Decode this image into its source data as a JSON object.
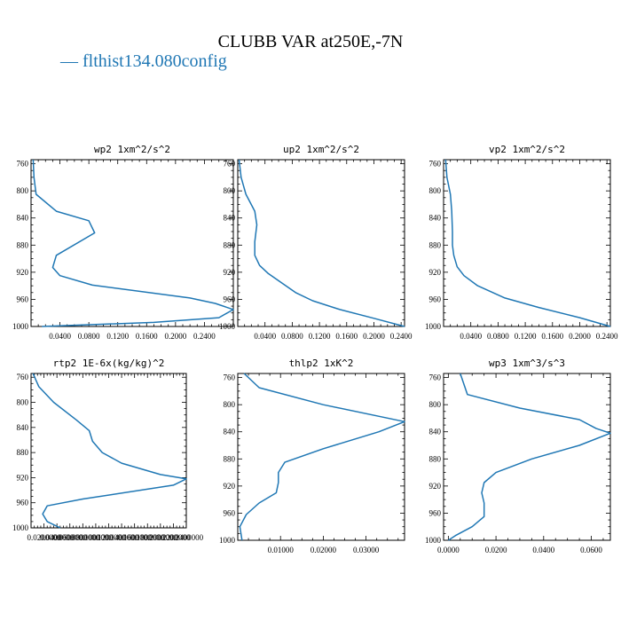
{
  "title": "CLUBB VAR at250E,-7N",
  "legend": {
    "label": "flthist134.080config",
    "symbol": "—",
    "color": "#1f77b4"
  },
  "chart_data": [
    {
      "type": "line",
      "title": "wp2  1xm^2/s^2",
      "y_ticks": [
        760,
        800,
        840,
        880,
        920,
        960,
        1000
      ],
      "ylim": [
        1000,
        754
      ],
      "xlim": [
        0,
        0.28
      ],
      "x_ticks": [
        0.04,
        0.08,
        0.12,
        0.16,
        0.2,
        0.24
      ],
      "x_tick_labels": [
        "0.0400",
        "0.0800",
        "0.1200",
        "0.1600",
        "0.2000",
        "0.2400"
      ],
      "series": [
        {
          "name": "flthist134.080config",
          "points": [
            [
              0.003,
              754
            ],
            [
              0.004,
              780
            ],
            [
              0.007,
              805
            ],
            [
              0.035,
              830
            ],
            [
              0.08,
              844
            ],
            [
              0.088,
              862
            ],
            [
              0.035,
              895
            ],
            [
              0.03,
              913
            ],
            [
              0.04,
              925
            ],
            [
              0.085,
              939
            ],
            [
              0.22,
              958
            ],
            [
              0.255,
              966
            ],
            [
              0.28,
              975
            ],
            [
              0.26,
              987
            ],
            [
              0.17,
              994
            ],
            [
              0.015,
              1000
            ]
          ]
        }
      ]
    },
    {
      "type": "line",
      "title": "up2  1xm^2/s^2",
      "y_ticks": [
        760,
        800,
        840,
        880,
        920,
        960,
        1000
      ],
      "ylim": [
        1000,
        754
      ],
      "xlim": [
        0,
        0.245
      ],
      "x_ticks": [
        0.04,
        0.08,
        0.12,
        0.16,
        0.2,
        0.24
      ],
      "x_tick_labels": [
        "0.0400",
        "0.0800",
        "0.1200",
        "0.1600",
        "0.2000",
        "0.2400"
      ],
      "series": [
        {
          "name": "flthist134.080config",
          "points": [
            [
              0.002,
              754
            ],
            [
              0.005,
              780
            ],
            [
              0.012,
              805
            ],
            [
              0.025,
              830
            ],
            [
              0.028,
              850
            ],
            [
              0.025,
              875
            ],
            [
              0.025,
              895
            ],
            [
              0.032,
              910
            ],
            [
              0.045,
              922
            ],
            [
              0.065,
              936
            ],
            [
              0.085,
              950
            ],
            [
              0.11,
              962
            ],
            [
              0.15,
              975
            ],
            [
              0.2,
              988
            ],
            [
              0.245,
              1000
            ]
          ]
        }
      ]
    },
    {
      "type": "line",
      "title": "vp2  1xm^2/s^2",
      "y_ticks": [
        760,
        800,
        840,
        880,
        920,
        960,
        1000
      ],
      "ylim": [
        1000,
        754
      ],
      "xlim": [
        0,
        0.245
      ],
      "x_ticks": [
        0.04,
        0.08,
        0.12,
        0.16,
        0.2,
        0.24
      ],
      "x_tick_labels": [
        "0.0400",
        "0.0800",
        "0.1200",
        "0.1600",
        "0.2000",
        "0.2400"
      ],
      "series": [
        {
          "name": "flthist134.080config",
          "points": [
            [
              0.003,
              754
            ],
            [
              0.005,
              780
            ],
            [
              0.01,
              805
            ],
            [
              0.012,
              830
            ],
            [
              0.013,
              860
            ],
            [
              0.013,
              880
            ],
            [
              0.015,
              895
            ],
            [
              0.02,
              912
            ],
            [
              0.03,
              925
            ],
            [
              0.05,
              940
            ],
            [
              0.09,
              958
            ],
            [
              0.14,
              972
            ],
            [
              0.2,
              987
            ],
            [
              0.245,
              1000
            ]
          ]
        }
      ]
    },
    {
      "type": "line",
      "title": "rtp2  1E-6x(kg/kg)^2",
      "y_ticks": [
        760,
        800,
        840,
        880,
        920,
        960,
        1000
      ],
      "ylim": [
        1000,
        754
      ],
      "xlim": [
        0,
        0.24
      ],
      "x_ticks": [
        0.02,
        0.04,
        0.06,
        0.08,
        0.1,
        0.12,
        0.14,
        0.16,
        0.18,
        0.2,
        0.22,
        0.24
      ],
      "x_tick_labels": [
        "0.0200000",
        "0.0400000",
        "0.0600000",
        "0.0800000",
        "0.1000000",
        "0.1200000",
        "0.1400000",
        "0.1600000",
        "0.1800000",
        "0.2000000",
        "0.2200000",
        "0.2400000"
      ],
      "series": [
        {
          "name": "flthist134.080config",
          "points": [
            [
              0.003,
              754
            ],
            [
              0.012,
              775
            ],
            [
              0.035,
              800
            ],
            [
              0.07,
              828
            ],
            [
              0.09,
              845
            ],
            [
              0.095,
              862
            ],
            [
              0.11,
              880
            ],
            [
              0.14,
              897
            ],
            [
              0.2,
              915
            ],
            [
              0.24,
              922
            ],
            [
              0.22,
              932
            ],
            [
              0.08,
              954
            ],
            [
              0.025,
              965
            ],
            [
              0.018,
              978
            ],
            [
              0.025,
              990
            ],
            [
              0.045,
              1000
            ]
          ]
        }
      ]
    },
    {
      "type": "line",
      "title": "thlp2  1xK^2",
      "y_ticks": [
        760,
        800,
        840,
        880,
        920,
        960,
        1000
      ],
      "ylim": [
        1000,
        754
      ],
      "xlim": [
        0,
        0.039
      ],
      "x_ticks": [
        0.01,
        0.02,
        0.03
      ],
      "x_tick_labels": [
        "0.01000",
        "0.02000",
        "0.03000"
      ],
      "series": [
        {
          "name": "flthist134.080config",
          "points": [
            [
              0.0015,
              754
            ],
            [
              0.005,
              775
            ],
            [
              0.02,
              800
            ],
            [
              0.039,
              825
            ],
            [
              0.033,
              840
            ],
            [
              0.02,
              865
            ],
            [
              0.011,
              885
            ],
            [
              0.0095,
              900
            ],
            [
              0.0095,
              915
            ],
            [
              0.009,
              930
            ],
            [
              0.005,
              945
            ],
            [
              0.002,
              962
            ],
            [
              0.0005,
              980
            ],
            [
              0.001,
              1000
            ]
          ]
        }
      ]
    },
    {
      "type": "line",
      "title": "wp3  1xm^3/s^3",
      "y_ticks": [
        760,
        800,
        840,
        880,
        920,
        960,
        1000
      ],
      "ylim": [
        1000,
        754
      ],
      "xlim": [
        -0.002,
        0.068
      ],
      "x_ticks": [
        0.0,
        0.02,
        0.04,
        0.06
      ],
      "x_tick_labels": [
        "0.0000",
        "0.0200",
        "0.0400",
        "0.0600"
      ],
      "series": [
        {
          "name": "flthist134.080config",
          "points": [
            [
              0.005,
              754
            ],
            [
              0.008,
              785
            ],
            [
              0.03,
              805
            ],
            [
              0.055,
              822
            ],
            [
              0.062,
              835
            ],
            [
              0.068,
              842
            ],
            [
              0.055,
              860
            ],
            [
              0.035,
              880
            ],
            [
              0.02,
              900
            ],
            [
              0.015,
              915
            ],
            [
              0.014,
              930
            ],
            [
              0.015,
              945
            ],
            [
              0.015,
              965
            ],
            [
              0.01,
              980
            ],
            [
              0.003,
              993
            ],
            [
              0.0,
              1000
            ]
          ]
        }
      ]
    }
  ]
}
